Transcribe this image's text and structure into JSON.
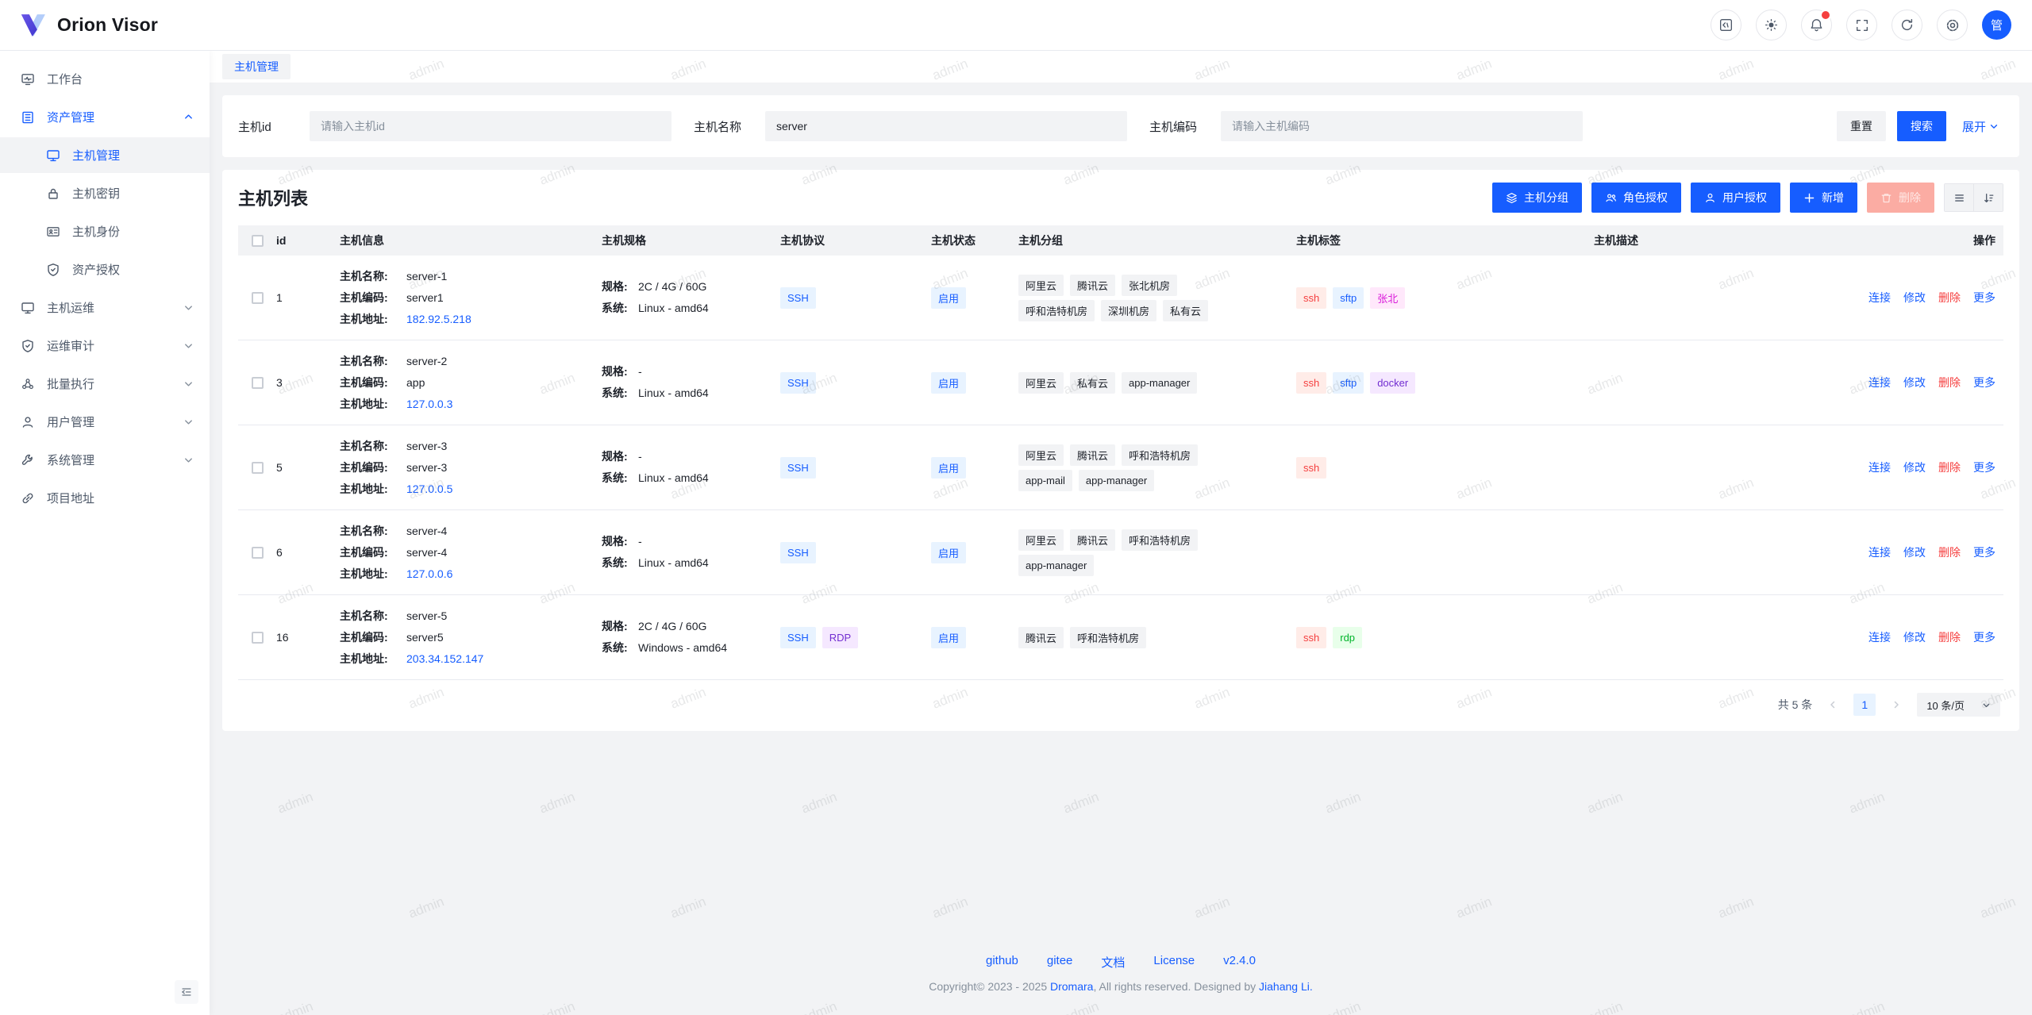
{
  "app": {
    "name": "Orion Visor",
    "avatar": "管"
  },
  "header": {
    "icons": [
      "code-panel-icon",
      "brightness-icon",
      "notifications-icon",
      "fullscreen-icon",
      "refresh-icon",
      "settings-icon"
    ],
    "notification_dot": true
  },
  "sidebar": {
    "items": [
      {
        "label": "工作台",
        "icon": "workbench-icon"
      },
      {
        "label": "资产管理",
        "icon": "asset-icon",
        "expanded": true,
        "children": [
          {
            "label": "主机管理",
            "icon": "host-icon",
            "selected": true
          },
          {
            "label": "主机密钥",
            "icon": "key-icon"
          },
          {
            "label": "主机身份",
            "icon": "identity-icon"
          },
          {
            "label": "资产授权",
            "icon": "grant-icon"
          }
        ]
      },
      {
        "label": "主机运维",
        "icon": "ops-icon"
      },
      {
        "label": "运维审计",
        "icon": "audit-icon"
      },
      {
        "label": "批量执行",
        "icon": "batch-icon"
      },
      {
        "label": "用户管理",
        "icon": "users-icon"
      },
      {
        "label": "系统管理",
        "icon": "system-icon"
      },
      {
        "label": "项目地址",
        "icon": "link-icon"
      }
    ]
  },
  "tabs": {
    "active": "主机管理"
  },
  "search": {
    "fields": [
      {
        "label": "主机id",
        "placeholder": "请输入主机id",
        "value": ""
      },
      {
        "label": "主机名称",
        "placeholder": "",
        "value": "server"
      },
      {
        "label": "主机编码",
        "placeholder": "请输入主机编码",
        "value": ""
      }
    ],
    "reset": "重置",
    "search": "搜索",
    "expand": "展开"
  },
  "list": {
    "title": "主机列表",
    "toolbar": {
      "group": "主机分组",
      "role_grant": "角色授权",
      "user_grant": "用户授权",
      "add": "新增",
      "delete": "删除"
    },
    "columns": [
      "id",
      "主机信息",
      "主机规格",
      "主机协议",
      "主机状态",
      "主机分组",
      "主机标签",
      "主机描述",
      "操作"
    ],
    "field_labels": {
      "name": "主机名称:",
      "code": "主机编码:",
      "address": "主机地址:",
      "spec": "规格:",
      "system": "系统:"
    },
    "actions": [
      "连接",
      "修改",
      "删除",
      "更多"
    ],
    "rows": [
      {
        "id": "1",
        "name": "server-1",
        "code": "server1",
        "address": "182.92.5.218",
        "spec": "2C / 4G / 60G",
        "system": "Linux - amd64",
        "protocols": [
          {
            "text": "SSH",
            "color": "blue"
          }
        ],
        "status": "启用",
        "groups": [
          [
            "阿里云",
            "腾讯云",
            "张北机房"
          ],
          [
            "呼和浩特机房",
            "深圳机房",
            "私有云"
          ]
        ],
        "tags": [
          {
            "text": "ssh",
            "color": "red"
          },
          {
            "text": "sftp",
            "color": "blue"
          },
          {
            "text": "张北",
            "color": "pinkpurple"
          }
        ],
        "description": ""
      },
      {
        "id": "3",
        "name": "server-2",
        "code": "app",
        "address": "127.0.0.3",
        "spec": "-",
        "system": "Linux - amd64",
        "protocols": [
          {
            "text": "SSH",
            "color": "blue"
          }
        ],
        "status": "启用",
        "groups": [
          [
            "阿里云",
            "私有云",
            "app-manager"
          ]
        ],
        "tags": [
          {
            "text": "ssh",
            "color": "red"
          },
          {
            "text": "sftp",
            "color": "blue"
          },
          {
            "text": "docker",
            "color": "purple"
          }
        ],
        "description": ""
      },
      {
        "id": "5",
        "name": "server-3",
        "code": "server-3",
        "address": "127.0.0.5",
        "spec": "-",
        "system": "Linux - amd64",
        "protocols": [
          {
            "text": "SSH",
            "color": "blue"
          }
        ],
        "status": "启用",
        "groups": [
          [
            "阿里云",
            "腾讯云",
            "呼和浩特机房"
          ],
          [
            "app-mail",
            "app-manager"
          ]
        ],
        "tags": [
          {
            "text": "ssh",
            "color": "red"
          }
        ],
        "description": ""
      },
      {
        "id": "6",
        "name": "server-4",
        "code": "server-4",
        "address": "127.0.0.6",
        "spec": "-",
        "system": "Linux - amd64",
        "protocols": [
          {
            "text": "SSH",
            "color": "blue"
          }
        ],
        "status": "启用",
        "groups": [
          [
            "阿里云",
            "腾讯云",
            "呼和浩特机房"
          ],
          [
            "app-manager"
          ]
        ],
        "tags": [],
        "description": ""
      },
      {
        "id": "16",
        "name": "server-5",
        "code": "server5",
        "address": "203.34.152.147",
        "spec": "2C / 4G / 60G",
        "system": "Windows - amd64",
        "protocols": [
          {
            "text": "SSH",
            "color": "blue"
          },
          {
            "text": "RDP",
            "color": "purple"
          }
        ],
        "status": "启用",
        "groups": [
          [
            "腾讯云",
            "呼和浩特机房"
          ]
        ],
        "tags": [
          {
            "text": "ssh",
            "color": "red"
          },
          {
            "text": "rdp",
            "color": "green"
          }
        ],
        "description": ""
      }
    ]
  },
  "pagination": {
    "total": "共 5 条",
    "page": "1",
    "page_size": "10 条/页"
  },
  "footer": {
    "links": [
      "github",
      "gitee",
      "文档",
      "License",
      "v2.4.0"
    ],
    "copyright": {
      "prefix": "Copyright© 2023 - 2025 ",
      "link1": "Dromara",
      "middle": ", All rights reserved. Designed by ",
      "link2": "Jiahang Li."
    }
  },
  "watermark": "admin",
  "colors": {
    "primary": "#165dff",
    "danger": "#f53f3f",
    "background": "#f2f3f5"
  }
}
